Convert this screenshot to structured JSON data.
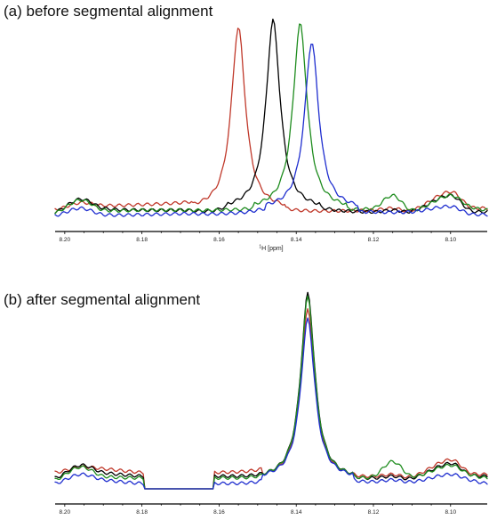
{
  "chart_data": [
    {
      "type": "line",
      "panel_id": "a",
      "title": "(a) before segmental alignment",
      "xlabel_sup": "1",
      "xlabel": "H [ppm]",
      "ylabel": "",
      "xlim": [
        8.2025,
        8.0905
      ],
      "x_reversed": true,
      "y_axis_shown": false,
      "grid": false,
      "legend": "none",
      "xticks": [
        "8.20",
        "8.18",
        "8.16",
        "8.14",
        "8.12",
        "8.10"
      ],
      "series": [
        {
          "color": "#c0392b",
          "peak": 8.155,
          "x": [
            8.2025,
            8.196,
            8.19,
            8.18,
            8.17,
            8.165,
            8.16,
            8.157,
            8.155,
            8.153,
            8.15,
            8.145,
            8.14,
            8.13,
            8.12,
            8.115,
            8.11,
            8.1,
            8.095,
            8.0905
          ],
          "y": [
            0.022,
            0.06,
            0.045,
            0.05,
            0.06,
            0.08,
            0.16,
            0.55,
            1.0,
            0.55,
            0.14,
            0.05,
            0.02,
            0.015,
            0.02,
            0.03,
            0.02,
            0.12,
            0.04,
            0.03
          ]
        },
        {
          "color": "#000000",
          "peak": 8.146,
          "x": [
            8.2025,
            8.196,
            8.19,
            8.18,
            8.17,
            8.16,
            8.152,
            8.148,
            8.146,
            8.144,
            8.14,
            8.135,
            8.13,
            8.12,
            8.115,
            8.11,
            8.1,
            8.095,
            8.0905
          ],
          "y": [
            0.01,
            0.08,
            0.03,
            0.02,
            0.02,
            0.025,
            0.16,
            0.6,
            1.04,
            0.6,
            0.14,
            0.05,
            0.02,
            0.01,
            0.02,
            0.015,
            0.1,
            0.02,
            0.01
          ]
        },
        {
          "color": "#1e8c1e",
          "peak": 8.139,
          "x": [
            8.2025,
            8.196,
            8.19,
            8.18,
            8.17,
            8.16,
            8.15,
            8.145,
            8.141,
            8.139,
            8.137,
            8.134,
            8.13,
            8.12,
            8.115,
            8.11,
            8.1,
            8.095,
            8.0905
          ],
          "y": [
            0.005,
            0.075,
            0.02,
            0.02,
            0.02,
            0.02,
            0.04,
            0.15,
            0.6,
            1.02,
            0.6,
            0.13,
            0.04,
            0.03,
            0.1,
            0.02,
            0.1,
            0.04,
            0.02
          ]
        },
        {
          "color": "#1f2ecf",
          "peak": 8.136,
          "x": [
            8.2025,
            8.196,
            8.19,
            8.18,
            8.17,
            8.16,
            8.15,
            8.142,
            8.138,
            8.136,
            8.134,
            8.131,
            8.127,
            8.12,
            8.11,
            8.1,
            8.095,
            8.0905
          ],
          "y": [
            -0.01,
            0.03,
            -0.005,
            -0.005,
            0.0,
            0.0,
            0.02,
            0.1,
            0.55,
            0.92,
            0.55,
            0.1,
            0.02,
            0.01,
            0.01,
            0.04,
            0.0,
            -0.005
          ]
        }
      ]
    },
    {
      "type": "line",
      "panel_id": "b",
      "title": "(b) after segmental alignment",
      "xlabel_sup": "1",
      "xlabel": "H [ppm]",
      "ylabel": "",
      "xlim": [
        8.2025,
        8.0905
      ],
      "x_reversed": true,
      "y_axis_shown": false,
      "grid": false,
      "legend": "none",
      "xticks": [
        "8.20",
        "8.18",
        "8.16",
        "8.14",
        "8.12",
        "8.10"
      ],
      "blank_region": [
        8.1795,
        8.1615
      ],
      "series": [
        {
          "color": "#c0392b",
          "peak": 8.137,
          "x": [
            8.2025,
            8.196,
            8.19,
            8.1795,
            8.1615,
            8.15,
            8.145,
            8.14,
            8.137,
            8.134,
            8.13,
            8.125,
            8.12,
            8.115,
            8.11,
            8.1,
            8.095,
            8.0905
          ],
          "y": [
            0.06,
            0.09,
            0.08,
            0.06,
            0.06,
            0.075,
            0.14,
            0.55,
            0.93,
            0.55,
            0.12,
            0.05,
            0.04,
            0.05,
            0.04,
            0.13,
            0.06,
            0.05
          ]
        },
        {
          "color": "#000000",
          "peak": 8.137,
          "x": [
            8.2025,
            8.196,
            8.19,
            8.1795,
            8.1615,
            8.15,
            8.145,
            8.14,
            8.137,
            8.134,
            8.13,
            8.125,
            8.12,
            8.115,
            8.11,
            8.1,
            8.095,
            8.0905
          ],
          "y": [
            0.03,
            0.1,
            0.06,
            0.04,
            0.04,
            0.05,
            0.12,
            0.6,
            1.02,
            0.6,
            0.1,
            0.04,
            0.03,
            0.04,
            0.03,
            0.11,
            0.05,
            0.04
          ]
        },
        {
          "color": "#1e8c1e",
          "peak": 8.137,
          "x": [
            8.2025,
            8.196,
            8.19,
            8.1795,
            8.1615,
            8.15,
            8.145,
            8.14,
            8.137,
            8.134,
            8.13,
            8.125,
            8.12,
            8.115,
            8.11,
            8.1,
            8.095,
            8.0905
          ],
          "y": [
            0.02,
            0.09,
            0.04,
            0.03,
            0.03,
            0.04,
            0.11,
            0.58,
            1.0,
            0.58,
            0.1,
            0.04,
            0.04,
            0.12,
            0.04,
            0.1,
            0.05,
            0.03
          ]
        },
        {
          "color": "#1f2ecf",
          "peak": 8.137,
          "x": [
            8.2025,
            8.196,
            8.19,
            8.1795,
            8.1615,
            8.15,
            8.145,
            8.14,
            8.137,
            8.134,
            8.13,
            8.125,
            8.12,
            8.115,
            8.11,
            8.1,
            8.095,
            8.0905
          ],
          "y": [
            0.0,
            0.05,
            0.02,
            0.0,
            0.0,
            0.01,
            0.08,
            0.5,
            0.88,
            0.5,
            0.08,
            0.02,
            0.01,
            0.02,
            0.01,
            0.05,
            0.02,
            0.0
          ]
        }
      ]
    }
  ]
}
